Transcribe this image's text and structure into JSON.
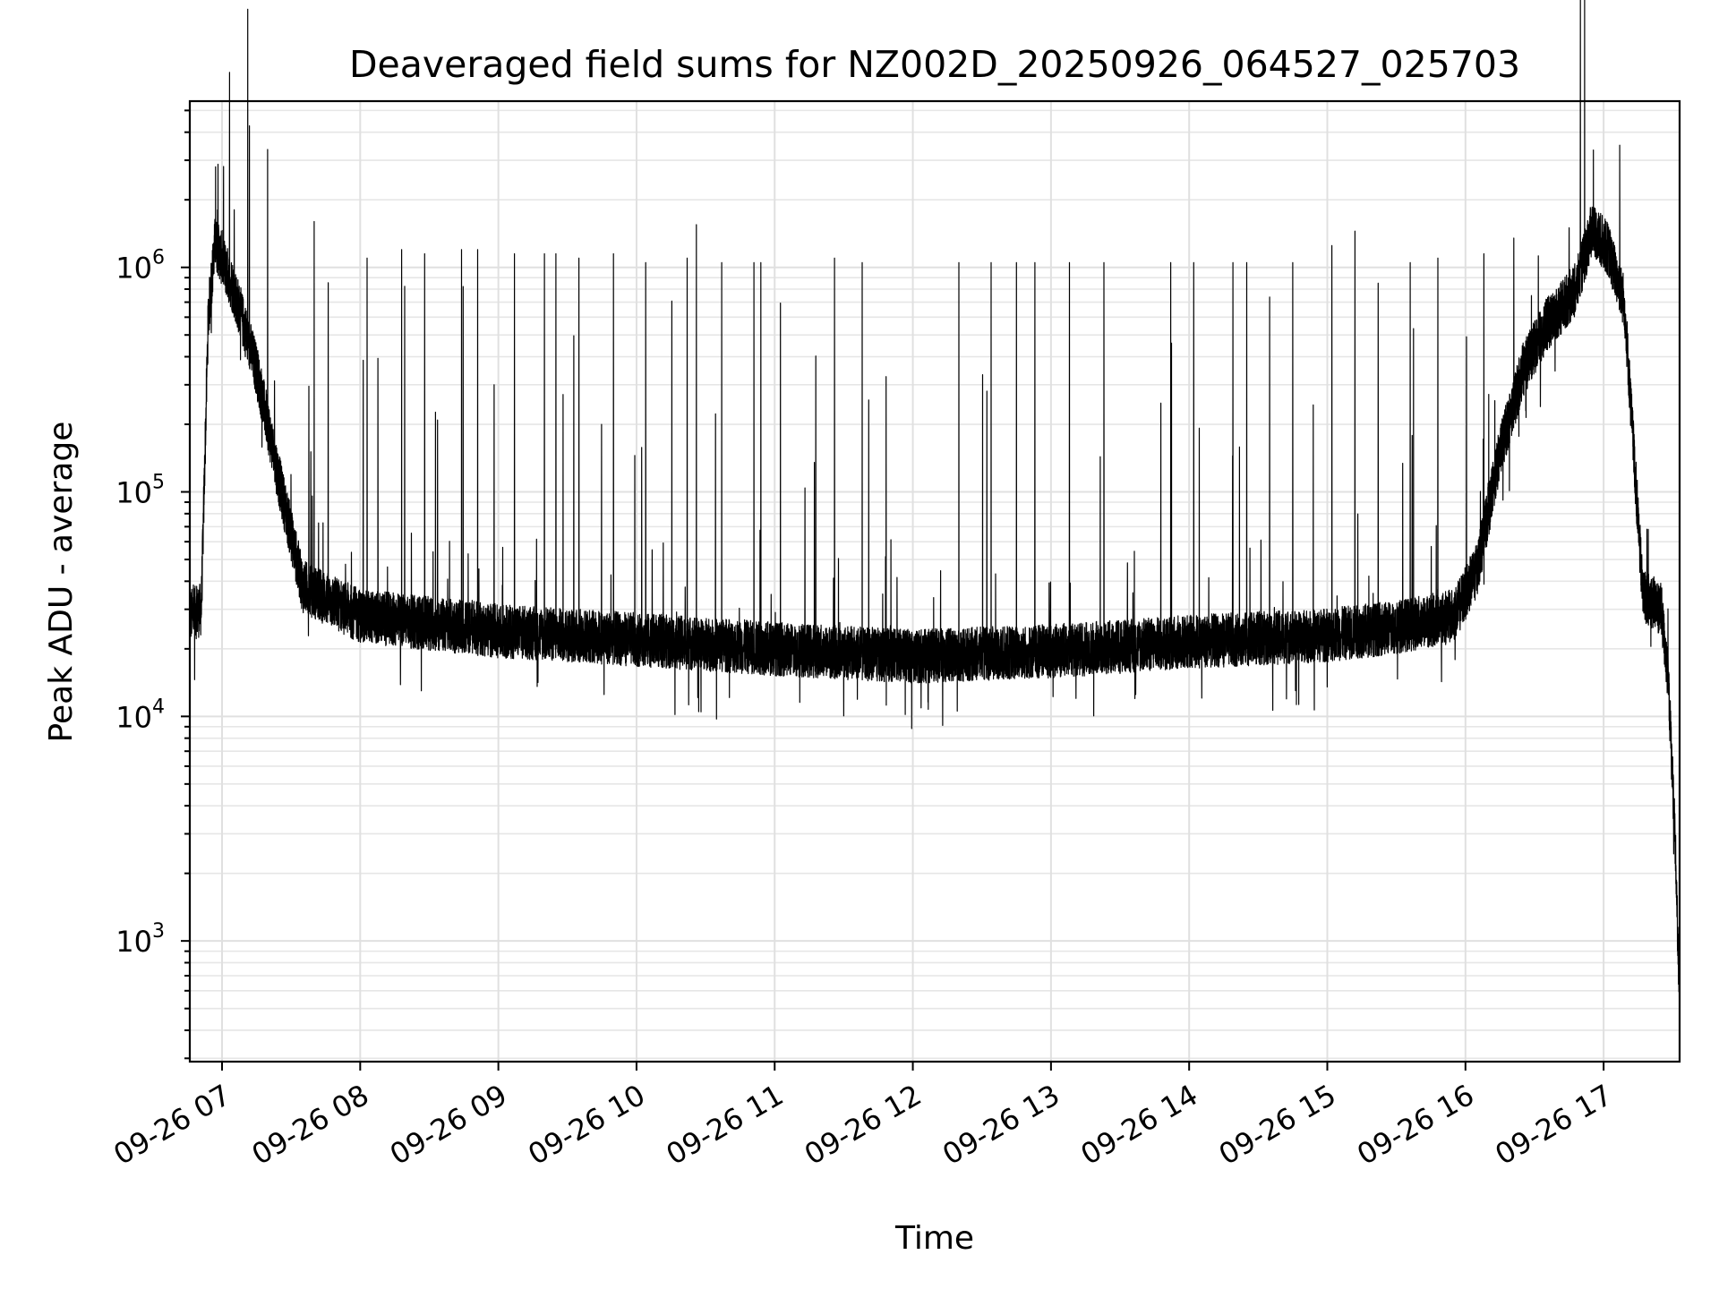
{
  "chart_data": {
    "type": "line",
    "title": "Deaveraged field sums for NZ002D_20250926_064527_025703",
    "xlabel": "Time",
    "ylabel": "Peak ADU - average",
    "yscale": "log",
    "ylim": [
      290,
      5500000
    ],
    "xlim": [
      "09-26 06:46",
      "09-26 17:33"
    ],
    "grid": true,
    "x_ticks": [
      {
        "label": "09-26 07",
        "value": "09-26 07:00"
      },
      {
        "label": "09-26 08",
        "value": "09-26 08:00"
      },
      {
        "label": "09-26 09",
        "value": "09-26 09:00"
      },
      {
        "label": "09-26 10",
        "value": "09-26 10:00"
      },
      {
        "label": "09-26 11",
        "value": "09-26 11:00"
      },
      {
        "label": "09-26 12",
        "value": "09-26 12:00"
      },
      {
        "label": "09-26 13",
        "value": "09-26 13:00"
      },
      {
        "label": "09-26 14",
        "value": "09-26 14:00"
      },
      {
        "label": "09-26 15",
        "value": "09-26 15:00"
      },
      {
        "label": "09-26 16",
        "value": "09-26 16:00"
      },
      {
        "label": "09-26 17",
        "value": "09-26 17:00"
      }
    ],
    "y_ticks": [
      {
        "base": "10",
        "exp": "3",
        "value": 1000
      },
      {
        "base": "10",
        "exp": "4",
        "value": 10000
      },
      {
        "base": "10",
        "exp": "5",
        "value": 100000
      },
      {
        "base": "10",
        "exp": "6",
        "value": 1000000
      }
    ],
    "series": [
      {
        "baseline": [
          {
            "x": "09-26 06:46",
            "y": 28000
          },
          {
            "x": "09-26 06:51",
            "y": 30000
          },
          {
            "x": "09-26 06:54",
            "y": 600000
          },
          {
            "x": "09-26 06:57",
            "y": 1300000
          },
          {
            "x": "09-26 07:05",
            "y": 800000
          },
          {
            "x": "09-26 07:15",
            "y": 350000
          },
          {
            "x": "09-26 07:25",
            "y": 110000
          },
          {
            "x": "09-26 07:35",
            "y": 38000
          },
          {
            "x": "09-26 08:00",
            "y": 28000
          },
          {
            "x": "09-26 09:00",
            "y": 24000
          },
          {
            "x": "09-26 10:00",
            "y": 22000
          },
          {
            "x": "09-26 11:00",
            "y": 20000
          },
          {
            "x": "09-26 12:00",
            "y": 18500
          },
          {
            "x": "09-26 13:00",
            "y": 19500
          },
          {
            "x": "09-26 14:00",
            "y": 21500
          },
          {
            "x": "09-26 15:00",
            "y": 23000
          },
          {
            "x": "09-26 15:30",
            "y": 25000
          },
          {
            "x": "09-26 15:55",
            "y": 28000
          },
          {
            "x": "09-26 16:05",
            "y": 45000
          },
          {
            "x": "09-26 16:15",
            "y": 150000
          },
          {
            "x": "09-26 16:25",
            "y": 350000
          },
          {
            "x": "09-26 16:35",
            "y": 550000
          },
          {
            "x": "09-26 16:48",
            "y": 800000
          },
          {
            "x": "09-26 16:55",
            "y": 1500000
          },
          {
            "x": "09-26 17:02",
            "y": 1200000
          },
          {
            "x": "09-26 17:09",
            "y": 700000
          },
          {
            "x": "09-26 17:17",
            "y": 35000
          },
          {
            "x": "09-26 17:25",
            "y": 30000
          },
          {
            "x": "09-26 17:28",
            "y": 15000
          },
          {
            "x": "09-26 17:31",
            "y": 3000
          },
          {
            "x": "09-26 17:33",
            "y": 500
          }
        ],
        "spikes": [
          {
            "x": "09-26 07:40",
            "y": 1600000
          },
          {
            "x": "09-26 08:03",
            "y": 1100000
          },
          {
            "x": "09-26 08:18",
            "y": 1200000
          },
          {
            "x": "09-26 08:28",
            "y": 1150000
          },
          {
            "x": "09-26 08:44",
            "y": 1200000
          },
          {
            "x": "09-26 08:51",
            "y": 1200000
          },
          {
            "x": "09-26 09:07",
            "y": 1150000
          },
          {
            "x": "09-26 09:20",
            "y": 1150000
          },
          {
            "x": "09-26 09:25",
            "y": 1150000
          },
          {
            "x": "09-26 09:35",
            "y": 1100000
          },
          {
            "x": "09-26 09:50",
            "y": 1150000
          },
          {
            "x": "09-26 10:04",
            "y": 1050000
          },
          {
            "x": "09-26 10:22",
            "y": 1100000
          },
          {
            "x": "09-26 10:26",
            "y": 1550000
          },
          {
            "x": "09-26 10:37",
            "y": 1050000
          },
          {
            "x": "09-26 10:51",
            "y": 1050000
          },
          {
            "x": "09-26 10:54",
            "y": 1050000
          },
          {
            "x": "09-26 11:26",
            "y": 1100000
          },
          {
            "x": "09-26 11:38",
            "y": 1050000
          },
          {
            "x": "09-26 12:20",
            "y": 1050000
          },
          {
            "x": "09-26 12:34",
            "y": 1050000
          },
          {
            "x": "09-26 12:45",
            "y": 1050000
          },
          {
            "x": "09-26 12:53",
            "y": 1050000
          },
          {
            "x": "09-26 13:08",
            "y": 1050000
          },
          {
            "x": "09-26 13:23",
            "y": 1050000
          },
          {
            "x": "09-26 13:52",
            "y": 1050000
          },
          {
            "x": "09-26 14:02",
            "y": 1050000
          },
          {
            "x": "09-26 14:19",
            "y": 1050000
          },
          {
            "x": "09-26 14:25",
            "y": 1050000
          },
          {
            "x": "09-26 14:45",
            "y": 1050000
          },
          {
            "x": "09-26 15:02",
            "y": 1250000
          },
          {
            "x": "09-26 15:12",
            "y": 1450000
          },
          {
            "x": "09-26 15:36",
            "y": 1050000
          },
          {
            "x": "09-26 15:48",
            "y": 1100000
          },
          {
            "x": "09-26 16:08",
            "y": 1150000
          },
          {
            "x": "09-26 16:21",
            "y": 1350000
          },
          {
            "x": "09-26 16:45",
            "y": 1500000
          },
          {
            "x": "09-26 17:07",
            "y": 3500000
          }
        ]
      }
    ]
  }
}
